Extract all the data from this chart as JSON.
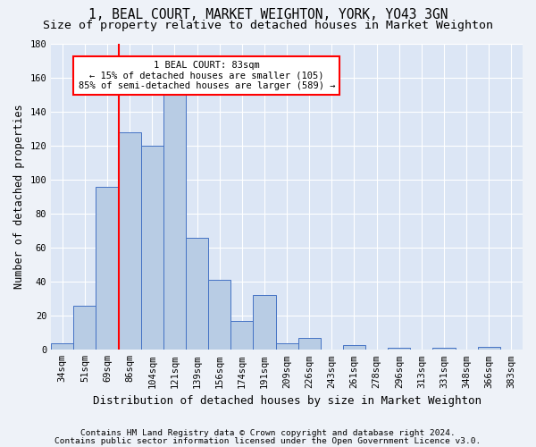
{
  "title1": "1, BEAL COURT, MARKET WEIGHTON, YORK, YO43 3GN",
  "title2": "Size of property relative to detached houses in Market Weighton",
  "xlabel": "Distribution of detached houses by size in Market Weighton",
  "ylabel": "Number of detached properties",
  "footnote1": "Contains HM Land Registry data © Crown copyright and database right 2024.",
  "footnote2": "Contains public sector information licensed under the Open Government Licence v3.0.",
  "categories": [
    "34sqm",
    "51sqm",
    "69sqm",
    "86sqm",
    "104sqm",
    "121sqm",
    "139sqm",
    "156sqm",
    "174sqm",
    "191sqm",
    "209sqm",
    "226sqm",
    "243sqm",
    "261sqm",
    "278sqm",
    "296sqm",
    "313sqm",
    "331sqm",
    "348sqm",
    "366sqm",
    "383sqm"
  ],
  "bar_values": [
    4,
    26,
    96,
    128,
    120,
    151,
    66,
    41,
    17,
    32,
    4,
    7,
    0,
    3,
    0,
    1,
    0,
    1,
    0,
    2,
    0
  ],
  "bar_color": "#b8cce4",
  "bar_edge_color": "#4472c4",
  "vline_x_index": 3,
  "vline_color": "red",
  "annotation_text": "1 BEAL COURT: 83sqm\n← 15% of detached houses are smaller (105)\n85% of semi-detached houses are larger (589) →",
  "annotation_box_color": "white",
  "annotation_box_edge": "red",
  "ylim": [
    0,
    180
  ],
  "yticks": [
    0,
    20,
    40,
    60,
    80,
    100,
    120,
    140,
    160,
    180
  ],
  "background_color": "#eef2f8",
  "plot_bg_color": "#dce6f5",
  "grid_color": "white",
  "title1_fontsize": 10.5,
  "title2_fontsize": 9.5,
  "xlabel_fontsize": 9,
  "ylabel_fontsize": 8.5,
  "tick_fontsize": 7.5,
  "footnote_fontsize": 6.8,
  "annot_fontsize": 7.5
}
